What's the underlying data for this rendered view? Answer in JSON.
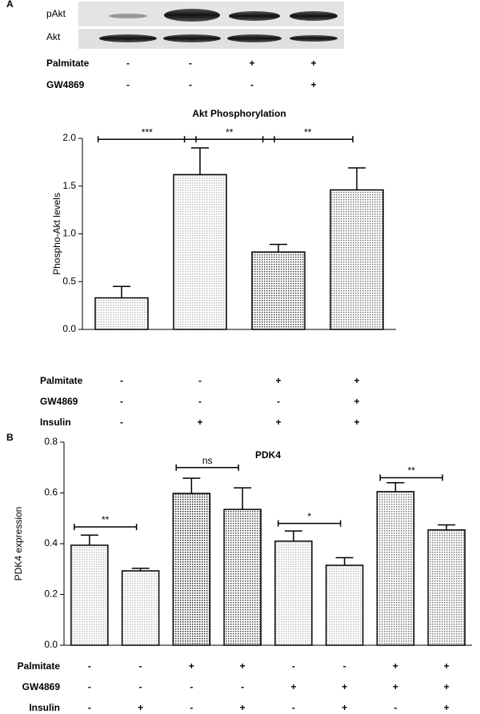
{
  "panel_a": {
    "label": "A",
    "blot_rows": [
      "pAkt",
      "Akt"
    ],
    "conditions": [
      {
        "name": "Palmitate",
        "values": [
          "-",
          "-",
          "+",
          "+"
        ]
      },
      {
        "name": "GW4869",
        "values": [
          "-",
          "-",
          "-",
          "+"
        ]
      }
    ]
  },
  "panel_b": {
    "label": "B"
  },
  "chart_data": [
    {
      "type": "bar",
      "title": "Akt Phosphorylation",
      "y_label": "Phospho-Akt levels",
      "categories": [
        null,
        null,
        null,
        null
      ],
      "values": [
        0.33,
        1.62,
        0.81,
        1.46
      ],
      "errors": [
        0.12,
        0.28,
        0.08,
        0.23
      ],
      "colors": [
        "#bdbdbd",
        "#bdbdbd",
        "#444444",
        "#777777"
      ],
      "ylim": [
        0,
        2.0
      ],
      "yticks": [
        {
          "value": 0,
          "label": "0.0"
        },
        0.5,
        {
          "value": 1,
          "label": "1.0"
        },
        1.5,
        {
          "value": 2,
          "label": "2.0"
        }
      ],
      "significance": [
        {
          "text": "***",
          "from": 0,
          "to": 1,
          "y": 1.99
        },
        {
          "text": "**",
          "from": 1,
          "to": 2,
          "y": 1.99
        },
        {
          "text": "**",
          "from": 2,
          "to": 3,
          "y": 1.99
        }
      ],
      "conditions": [
        {
          "name": "Palmitate",
          "values": [
            "-",
            "-",
            "+",
            "+"
          ]
        },
        {
          "name": "GW4869",
          "values": [
            "-",
            "-",
            "-",
            "+"
          ]
        },
        {
          "name": "Insulin",
          "values": [
            "-",
            "+",
            "+",
            "+"
          ]
        }
      ]
    },
    {
      "type": "bar",
      "title": "PDK4",
      "y_label": "PDK4 expression",
      "categories": [
        null,
        null,
        null,
        null,
        null,
        null,
        null,
        null
      ],
      "values": [
        0.394,
        0.293,
        0.598,
        0.535,
        0.41,
        0.315,
        0.605,
        0.454
      ],
      "errors": [
        0.04,
        0.01,
        0.06,
        0.085,
        0.04,
        0.03,
        0.035,
        0.02
      ],
      "colors": [
        "#bdbdbd",
        "#bdbdbd",
        "#222222",
        "#444444",
        "#bdbdbd",
        "#bdbdbd",
        "#777777",
        "#777777"
      ],
      "ylim": [
        0,
        0.8
      ],
      "yticks": [
        {
          "value": 0,
          "label": "0.0"
        },
        0.2,
        0.4,
        0.6,
        0.8
      ],
      "significance": [
        {
          "text": "**",
          "from": 0,
          "to": 1,
          "y": 0.466
        },
        {
          "text": "ns",
          "from": 2,
          "to": 3,
          "y": 0.7
        },
        {
          "text": "*",
          "from": 4,
          "to": 5,
          "y": 0.48
        },
        {
          "text": "**",
          "from": 6,
          "to": 7,
          "y": 0.66
        }
      ],
      "conditions": [
        {
          "name": "Palmitate",
          "values": [
            "-",
            "-",
            "+",
            "+",
            "-",
            "-",
            "+",
            "+"
          ]
        },
        {
          "name": "GW4869",
          "values": [
            "-",
            "-",
            "-",
            "-",
            "+",
            "+",
            "+",
            "+"
          ]
        },
        {
          "name": "Insulin",
          "values": [
            "-",
            "+",
            "-",
            "+",
            "-",
            "+",
            "-",
            "+"
          ]
        }
      ]
    }
  ]
}
